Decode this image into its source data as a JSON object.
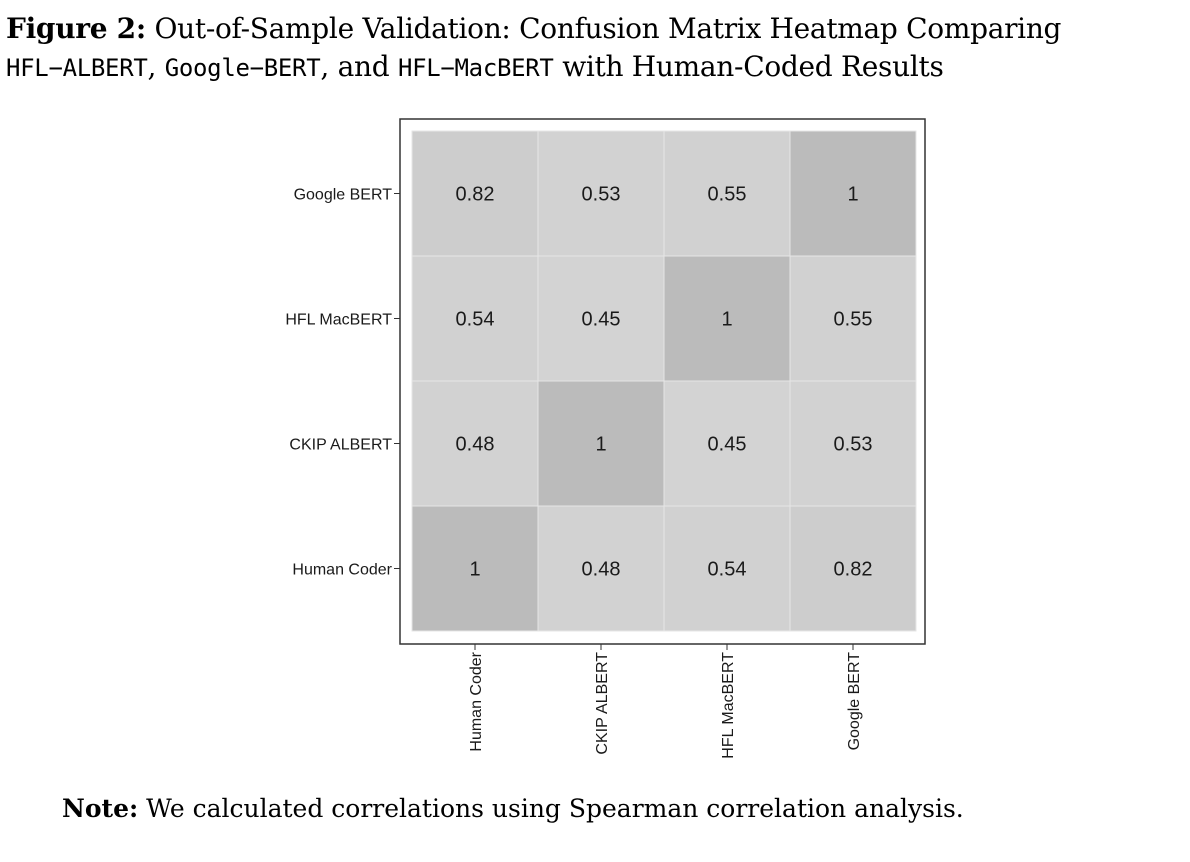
{
  "caption": {
    "figure_label": "Figure 2:",
    "text_pre": "Out-of-Sample Validation: Confusion Matrix Heatmap Comparing",
    "model_1": "HFL−ALBERT",
    "sep_1": ",",
    "model_2": "Google−BERT",
    "sep_2": ", and",
    "model_3": "HFL−MacBERT",
    "text_post": "with Human-Coded Results"
  },
  "note": {
    "label": "Note:",
    "text": "We calculated correlations using Spearman correlation analysis."
  },
  "chart_data": {
    "type": "heatmap",
    "x_categories": [
      "Human Coder",
      "CKIP ALBERT",
      "HFL MacBERT",
      "Google BERT"
    ],
    "y_categories": [
      "Human Coder",
      "CKIP ALBERT",
      "HFL MacBERT",
      "Google BERT"
    ],
    "values": [
      [
        1,
        0.48,
        0.54,
        0.82
      ],
      [
        0.48,
        1,
        0.45,
        0.53
      ],
      [
        0.54,
        0.45,
        1,
        0.55
      ],
      [
        0.82,
        0.53,
        0.55,
        1
      ]
    ],
    "value_labels": [
      [
        "1",
        "0.48",
        "0.54",
        "0.82"
      ],
      [
        "0.48",
        "1",
        "0.45",
        "0.53"
      ],
      [
        "0.54",
        "0.45",
        "1",
        "0.55"
      ],
      [
        "0.82",
        "0.53",
        "0.55",
        "1"
      ]
    ],
    "colors": {
      "low": "#d3d3d3",
      "high": "#bbbbbb",
      "frame": "#333333",
      "grid": "#e6e6e6"
    },
    "legend": "none"
  }
}
